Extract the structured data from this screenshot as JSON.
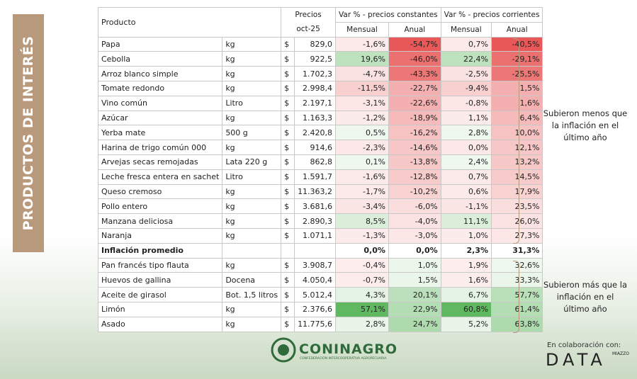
{
  "side_title": "PRODUCTOS DE INTERÉS",
  "table": {
    "header": {
      "producto": "Producto",
      "precios": "Precios",
      "periodo": "oct-25",
      "group_const": "Var % - precios constantes",
      "group_corr": "Var % - precios corrientes",
      "sub": [
        "Mensual",
        "Anual",
        "Mensual",
        "Anual"
      ]
    },
    "rows": [
      {
        "producto": "Papa",
        "unidad": "kg",
        "moneda": "$",
        "precio": "829,0",
        "values": [
          "-1,6%",
          "-54,7%",
          "0,7%",
          "-40,5%"
        ]
      },
      {
        "producto": "Cebolla",
        "unidad": "kg",
        "moneda": "$",
        "precio": "922,5",
        "values": [
          "19,6%",
          "-46,0%",
          "22,4%",
          "-29,1%"
        ]
      },
      {
        "producto": "Arroz blanco simple",
        "unidad": "kg",
        "moneda": "$",
        "precio": "1.702,3",
        "values": [
          "-4,7%",
          "-43,3%",
          "-2,5%",
          "-25,5%"
        ]
      },
      {
        "producto": "Tomate redondo",
        "unidad": "kg",
        "moneda": "$",
        "precio": "2.998,4",
        "values": [
          "-11,5%",
          "-22,7%",
          "-9,4%",
          "1,5%"
        ]
      },
      {
        "producto": "Vino común",
        "unidad": "Litro",
        "moneda": "$",
        "precio": "2.197,1",
        "values": [
          "-3,1%",
          "-22,6%",
          "-0,8%",
          "1,6%"
        ]
      },
      {
        "producto": "Azúcar",
        "unidad": "kg",
        "moneda": "$",
        "precio": "1.163,3",
        "values": [
          "-1,2%",
          "-18,9%",
          "1,1%",
          "6,4%"
        ]
      },
      {
        "producto": "Yerba mate",
        "unidad": "500 g",
        "moneda": "$",
        "precio": "2.420,8",
        "values": [
          "0,5%",
          "-16,2%",
          "2,8%",
          "10,0%"
        ]
      },
      {
        "producto": "Harina de trigo común 000",
        "unidad": "kg",
        "moneda": "$",
        "precio": "914,6",
        "values": [
          "-2,3%",
          "-14,6%",
          "0,0%",
          "12,1%"
        ]
      },
      {
        "producto": "Arvejas secas remojadas",
        "unidad": "Lata 220 g",
        "moneda": "$",
        "precio": "862,8",
        "values": [
          "0,1%",
          "-13,8%",
          "2,4%",
          "13,2%"
        ]
      },
      {
        "producto": "Leche fresca entera en sachet",
        "unidad": "Litro",
        "moneda": "$",
        "precio": "1.591,7",
        "values": [
          "-1,6%",
          "-12,8%",
          "0,7%",
          "14,5%"
        ]
      },
      {
        "producto": "Queso cremoso",
        "unidad": "kg",
        "moneda": "$",
        "precio": "11.363,2",
        "values": [
          "-1,7%",
          "-10,2%",
          "0,6%",
          "17,9%"
        ]
      },
      {
        "producto": "Pollo entero",
        "unidad": "kg",
        "moneda": "$",
        "precio": "3.681,6",
        "values": [
          "-3,4%",
          "-6,0%",
          "-1,1%",
          "23,5%"
        ]
      },
      {
        "producto": "Manzana deliciosa",
        "unidad": "kg",
        "moneda": "$",
        "precio": "2.890,3",
        "values": [
          "8,5%",
          "-4,0%",
          "11,1%",
          "26,0%"
        ]
      },
      {
        "producto": "Naranja",
        "unidad": "kg",
        "moneda": "$",
        "precio": "1.071,1",
        "values": [
          "-1,3%",
          "-3,0%",
          "1,0%",
          "27,3%"
        ]
      },
      {
        "producto": "Inflación promedio",
        "values": [
          "0,0%",
          "0,0%",
          "2,3%",
          "31,3%"
        ]
      },
      {
        "producto": "Pan francés tipo flauta",
        "unidad": "kg",
        "moneda": "$",
        "precio": "3.908,7",
        "values": [
          "-0,4%",
          "1,0%",
          "1,9%",
          "32,6%"
        ]
      },
      {
        "producto": "Huevos de gallina",
        "unidad": "Docena",
        "moneda": "$",
        "precio": "4.050,4",
        "values": [
          "-0,7%",
          "1,5%",
          "1,6%",
          "33,3%"
        ]
      },
      {
        "producto": "Aceite de girasol",
        "unidad": "Bot. 1,5 litros",
        "moneda": "$",
        "precio": "5.012,4",
        "values": [
          "4,3%",
          "20,1%",
          "6,7%",
          "57,7%"
        ]
      },
      {
        "producto": "Limón",
        "unidad": "kg",
        "moneda": "$",
        "precio": "2.376,6",
        "values": [
          "57,1%",
          "22,9%",
          "60,8%",
          "61,4%"
        ]
      },
      {
        "producto": "Asado",
        "unidad": "kg",
        "moneda": "$",
        "precio": "11.775,6",
        "values": [
          "2,8%",
          "24,7%",
          "5,2%",
          "63,8%"
        ]
      }
    ]
  },
  "annotations": [
    "Subieron menos que la inflación en el último año",
    "Subieron más que la inflación en el último año"
  ],
  "footer": {
    "brand": "CONINAGRO",
    "brand_sub": "CONFEDERACIÓN INTERCOOPERATIVA AGROPECUARIA",
    "collab": "En colaboración con:",
    "partner": "DATA",
    "partner_sub": "MIAZZO"
  }
}
